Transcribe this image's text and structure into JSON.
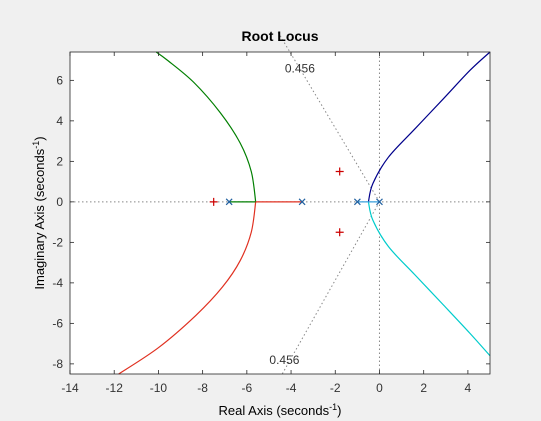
{
  "chart_data": {
    "type": "line",
    "title": "Root Locus",
    "xlabel": {
      "text": "Real Axis (seconds",
      "sup": "-1",
      "tail": ")"
    },
    "ylabel": {
      "text": "Imaginary Axis (seconds",
      "sup": "-1",
      "tail": ")"
    },
    "xlim": [
      -14,
      5
    ],
    "ylim": [
      -8.5,
      7.4
    ],
    "xticks": [
      -14,
      -12,
      -10,
      -8,
      -6,
      -4,
      -2,
      0,
      2,
      4
    ],
    "yticks": [
      -8,
      -6,
      -4,
      -2,
      0,
      2,
      4,
      6
    ],
    "grid": false,
    "colors": {
      "background": "#f0f0f0",
      "axes_bg": "#ffffff",
      "pole_marker": "#2060a0",
      "zero_marker": "#cc0000",
      "grid_lines": "#888888"
    },
    "damping_annotations": [
      {
        "label": "0.456",
        "position": "top"
      },
      {
        "label": "0.456",
        "position": "bottom"
      }
    ],
    "series": [
      {
        "color": "#007f00",
        "points": [
          [
            -5.6,
            0
          ],
          [
            -5.8,
            1.5
          ],
          [
            -6.3,
            2.9
          ],
          [
            -7.2,
            4.4
          ],
          [
            -8.4,
            5.9
          ],
          [
            -9.6,
            7.0
          ],
          [
            -10.1,
            7.4
          ]
        ]
      },
      {
        "color": "#e03020",
        "points": [
          [
            -5.6,
            0
          ],
          [
            -5.8,
            -1.5
          ],
          [
            -6.3,
            -2.9
          ],
          [
            -7.1,
            -4.2
          ],
          [
            -8.3,
            -5.6
          ],
          [
            -10.0,
            -7.2
          ],
          [
            -11.8,
            -8.5
          ]
        ]
      },
      {
        "color": "#00008b",
        "points": [
          [
            -0.5,
            0
          ],
          [
            -0.3,
            0.9
          ],
          [
            0.4,
            2.2
          ],
          [
            1.6,
            3.6
          ],
          [
            2.9,
            5.1
          ],
          [
            4.1,
            6.5
          ],
          [
            5.0,
            7.4
          ]
        ]
      },
      {
        "color": "#00cccc",
        "points": [
          [
            -0.5,
            0
          ],
          [
            -0.3,
            -0.9
          ],
          [
            0.4,
            -2.2
          ],
          [
            1.6,
            -3.6
          ],
          [
            2.9,
            -5.1
          ],
          [
            4.1,
            -6.5
          ],
          [
            5.0,
            -7.6
          ]
        ]
      },
      {
        "color": "#007f00",
        "points": [
          [
            -6.8,
            0
          ],
          [
            -5.6,
            0
          ]
        ]
      },
      {
        "color": "#e03020",
        "points": [
          [
            -5.6,
            0
          ],
          [
            -3.5,
            0
          ]
        ]
      },
      {
        "color": "#3aa0dd",
        "points": [
          [
            -1.0,
            0
          ],
          [
            -0.5,
            0
          ],
          [
            0,
            0
          ]
        ]
      }
    ],
    "poles": [
      [
        -6.8,
        0
      ],
      [
        -3.5,
        0
      ],
      [
        -1.0,
        0
      ],
      [
        0,
        0
      ]
    ],
    "zeros": [
      [
        -7.5,
        0
      ],
      [
        -1.8,
        1.5
      ],
      [
        -1.8,
        -1.5
      ]
    ],
    "dotted_lines": [
      {
        "from": [
          0,
          0
        ],
        "to": [
          -4.6,
          8.4
        ]
      },
      {
        "from": [
          0,
          0
        ],
        "to": [
          -4.4,
          -8.5
        ]
      },
      {
        "from": [
          0,
          -8.5
        ],
        "to": [
          0,
          7.4
        ]
      },
      {
        "from": [
          -14,
          0
        ],
        "to": [
          5,
          0
        ]
      }
    ]
  }
}
